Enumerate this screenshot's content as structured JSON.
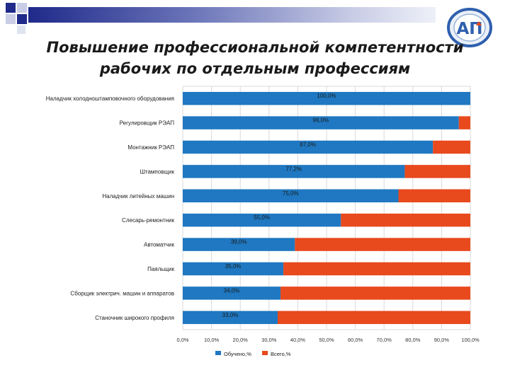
{
  "slide": {
    "title_line1": "Повышение профессиональной компетентности",
    "title_line2": "рабочих по отдельным профессиям",
    "logo_text": "АП",
    "colors": {
      "title_bar": "#1f2a8a",
      "logo": "#2f5fae"
    }
  },
  "chart_data": {
    "type": "bar",
    "orientation": "horizontal",
    "stacked": true,
    "categories": [
      "Наладчик холодноштамповочного оборудования",
      "Регулировщик РЭАП",
      "Монтажник РЭАП",
      "Штамповщик",
      "Наладчик  литейных машин",
      "Слесарь-ремонтник",
      "Автоматчик",
      "Паяльщик",
      "Сборщик электрич. машин и аппаратов",
      "Станочник широкого профиля"
    ],
    "series": [
      {
        "name": "Обучено,%",
        "color": "#1f78c1",
        "values": [
          100.0,
          96.0,
          87.0,
          77.2,
          75.0,
          55.0,
          39.0,
          35.0,
          34.0,
          33.0
        ],
        "labels": [
          "100,0%",
          "96,0%",
          "87,0%",
          "77,2%",
          "75,0%",
          "55,0%",
          "39,0%",
          "35,0%",
          "34,0%",
          "33,0%"
        ]
      },
      {
        "name": "Всего,%",
        "color": "#e8491d",
        "values": [
          0.0,
          4.0,
          13.0,
          22.8,
          25.0,
          45.0,
          61.0,
          65.0,
          66.0,
          67.0
        ]
      }
    ],
    "xlim": [
      0,
      100
    ],
    "xticks": [
      "0,0%",
      "10,0%",
      "20,0%",
      "30,0%",
      "40,0%",
      "50,0%",
      "60,0%",
      "70,0%",
      "80,0%",
      "90,0%",
      "100,0%"
    ],
    "grid": true,
    "legend_position": "bottom"
  }
}
